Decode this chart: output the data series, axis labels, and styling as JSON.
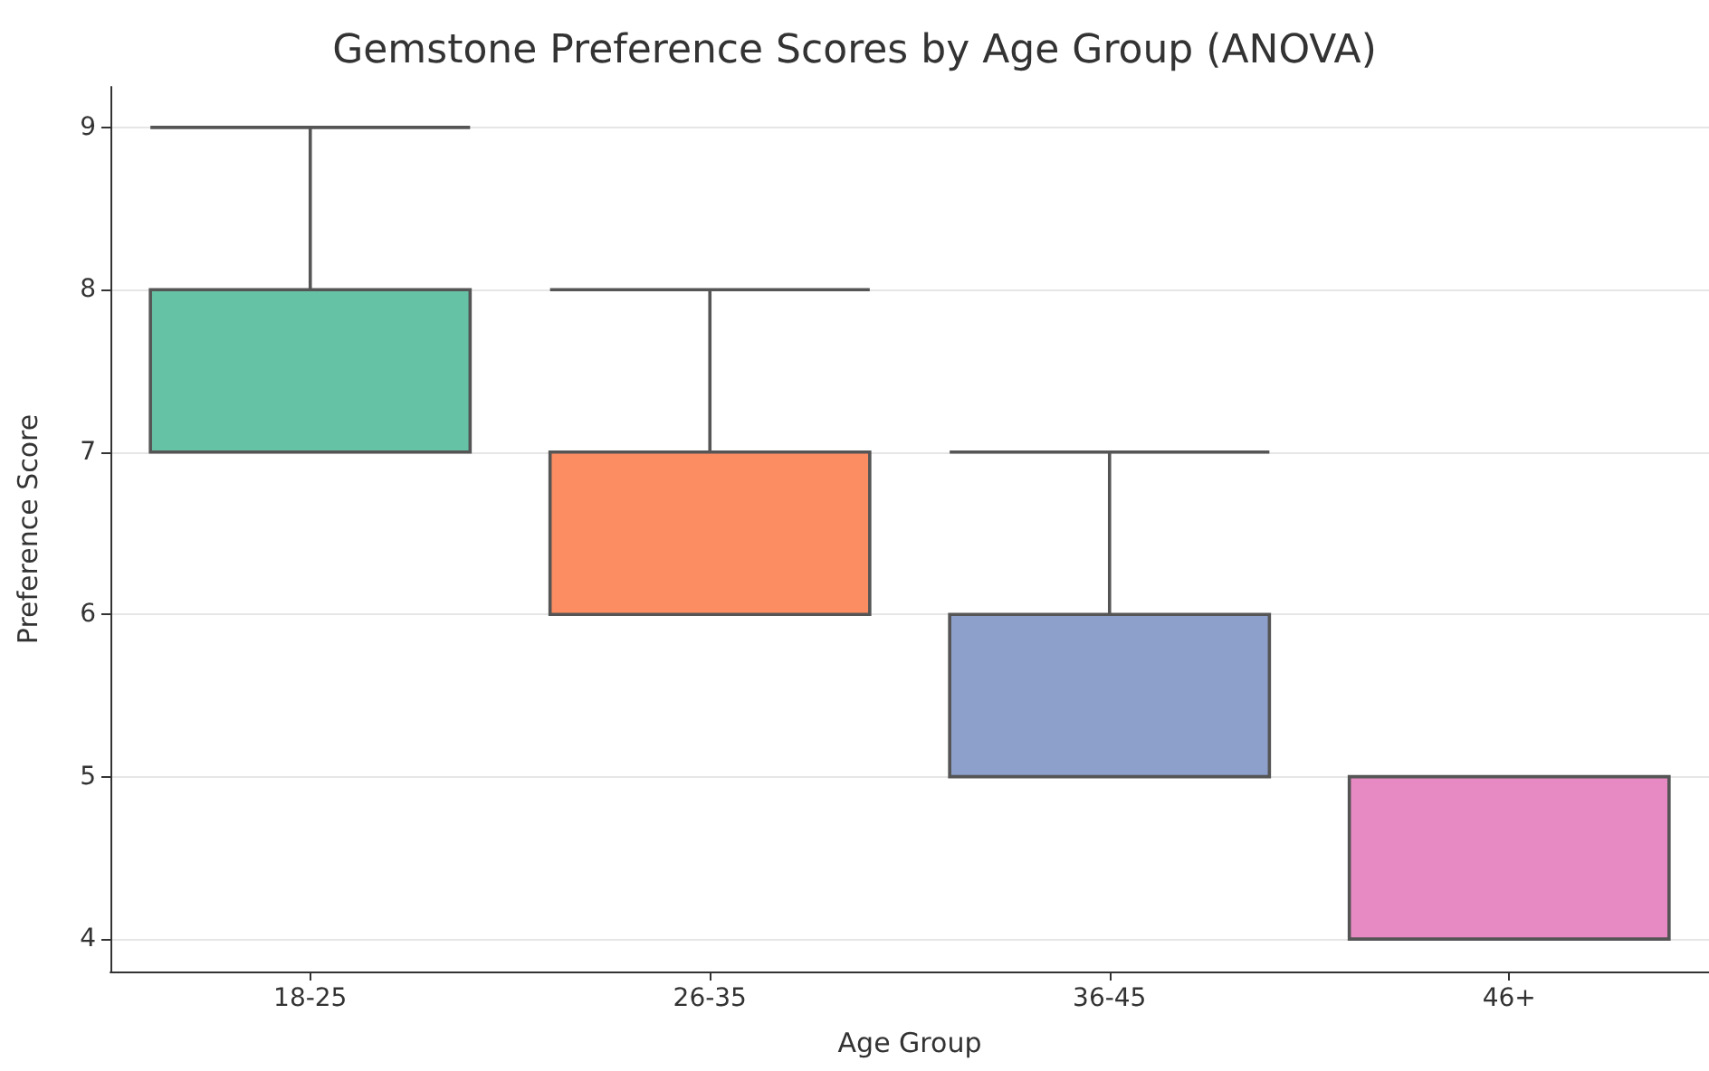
{
  "chart_data": {
    "type": "box",
    "title": "Gemstone Preference Scores by Age Group (ANOVA)",
    "xlabel": "Age Group",
    "ylabel": "Preference Score",
    "categories": [
      "18-25",
      "26-35",
      "36-45",
      "46+"
    ],
    "colors": [
      "#66c2a5",
      "#fc8d62",
      "#8da0cb",
      "#e78ac3"
    ],
    "boxes": [
      {
        "low": 7,
        "q1": 7,
        "median": 7,
        "q3": 8,
        "high": 9
      },
      {
        "low": 6,
        "q1": 6,
        "median": 6,
        "q3": 7,
        "high": 8
      },
      {
        "low": 5,
        "q1": 5,
        "median": 5,
        "q3": 6,
        "high": 7
      },
      {
        "low": 4,
        "q1": 4,
        "median": 4,
        "q3": 5,
        "high": 5
      }
    ],
    "ylim": [
      3.8,
      9.25
    ],
    "yticks": [
      4,
      5,
      6,
      7,
      8,
      9
    ],
    "grid": "y"
  }
}
